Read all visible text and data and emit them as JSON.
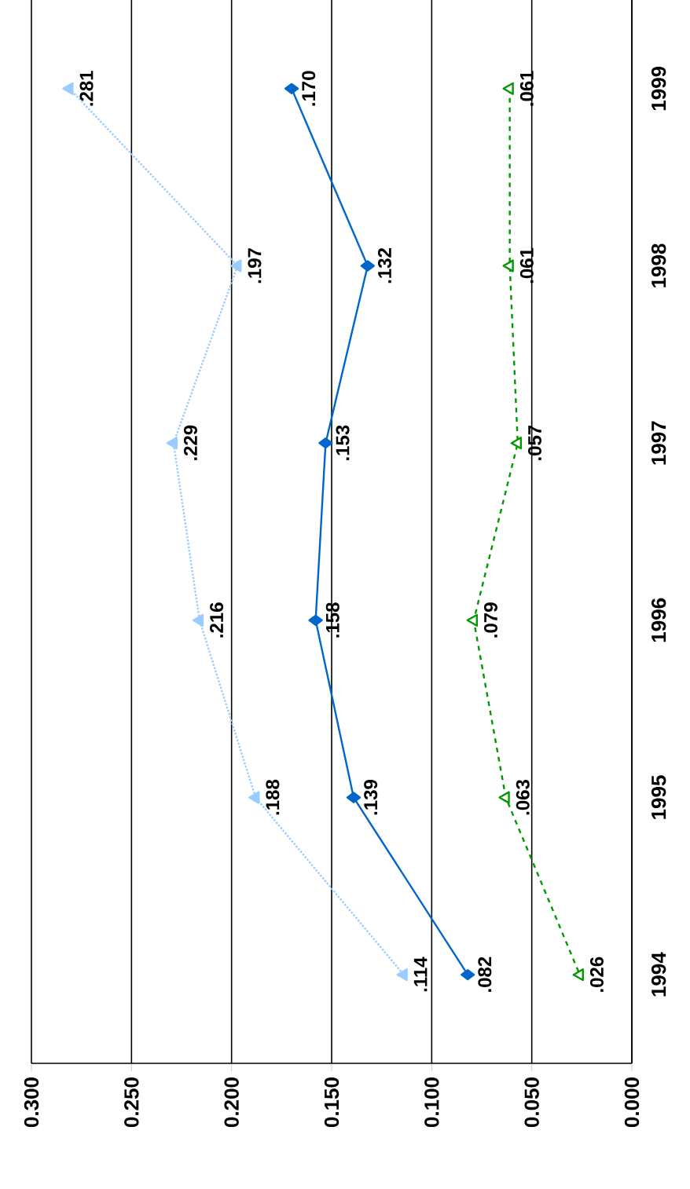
{
  "chart_data": {
    "type": "line",
    "orientation": "horizontal",
    "categories": [
      "1999",
      "1998",
      "1997",
      "1996",
      "1995",
      "1994"
    ],
    "series": [
      {
        "color": "#99ccff",
        "marker": "triangle",
        "line_style": "dotted",
        "values": [
          0.281,
          0.197,
          0.229,
          0.216,
          0.188,
          0.114
        ],
        "value_labels": [
          ".281",
          ".197",
          ".229",
          ".216",
          ".188",
          ".114"
        ]
      },
      {
        "color": "#0066cc",
        "marker": "diamond",
        "line_style": "solid",
        "values": [
          0.17,
          0.132,
          0.153,
          0.158,
          0.139,
          0.082
        ],
        "value_labels": [
          ".170",
          ".132",
          ".153",
          ".158",
          ".139",
          ".082"
        ]
      },
      {
        "color": "#009900",
        "marker": "triangle",
        "line_style": "dashed",
        "values": [
          0.061,
          0.061,
          0.057,
          0.079,
          0.063,
          0.026
        ],
        "value_labels": [
          ".061",
          ".061",
          ".057",
          ".079",
          ".063",
          ".026"
        ]
      }
    ],
    "xlim": [
      0.3,
      0
    ],
    "xticks": [
      {
        "value": 0.3,
        "label": "0.300"
      },
      {
        "value": 0.25,
        "label": "0.250"
      },
      {
        "value": 0.2,
        "label": "0.200"
      },
      {
        "value": 0.15,
        "label": "0.150"
      },
      {
        "value": 0.1,
        "label": "0.100"
      },
      {
        "value": 0.05,
        "label": "0.050"
      },
      {
        "value": 0,
        "label": "0.000"
      }
    ],
    "grid": "x"
  }
}
